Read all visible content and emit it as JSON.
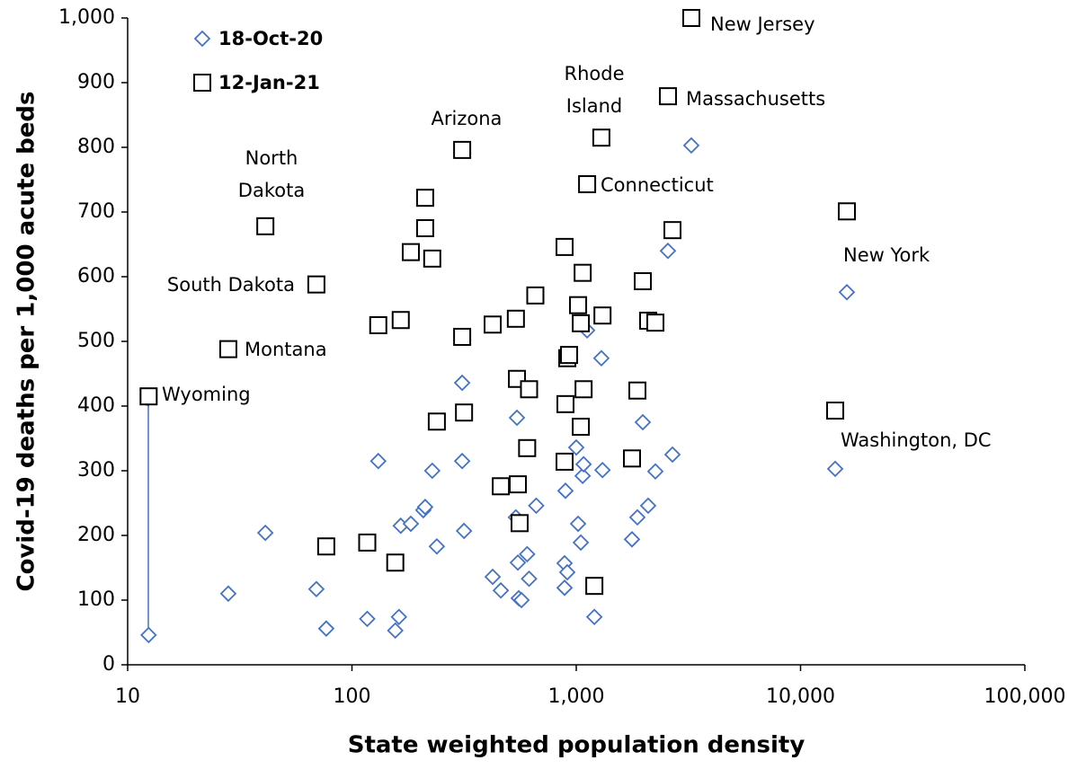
{
  "chart_data": {
    "type": "scatter",
    "xlabel": "State weighted population density",
    "ylabel": "Covid-19 deaths per 1,000 acute beds",
    "xscale": "log",
    "xlim": [
      10,
      100000
    ],
    "xticks": [
      10,
      100,
      {
        "value": 1000,
        "label": "1,000"
      },
      {
        "value": 10000,
        "label": "10,000"
      },
      {
        "value": 100000,
        "label": "100,000"
      }
    ],
    "ylim": [
      0,
      1000
    ],
    "yticks": [
      0,
      100,
      200,
      300,
      400,
      500,
      600,
      700,
      800,
      900,
      {
        "value": 1000,
        "label": "1,000"
      }
    ],
    "grid": false,
    "legend": "upper left",
    "series": [
      {
        "name": "18-Oct-20",
        "color": "#4472c4",
        "marker": "diamond",
        "x": [
          12.4,
          28.1,
          41.1,
          69.4,
          76.8,
          117,
          131,
          156,
          162,
          165,
          183,
          208,
          212,
          228,
          239,
          310,
          310,
          316,
          424,
          461,
          538,
          549,
          544,
          554,
          570,
          604,
          616,
          663,
          887,
          887,
          895,
          912,
          1000,
          1019,
          1048,
          1068,
          1078,
          1118,
          1294,
          1309,
          1204,
          1772,
          1873,
          1980,
          2092,
          2253,
          2685,
          2563,
          3258,
          14270,
          16083
        ],
        "values": [
          46,
          110,
          204,
          117,
          56,
          71,
          315,
          53,
          74,
          215,
          218,
          239,
          244,
          300,
          183,
          436,
          315,
          207,
          136,
          115,
          228,
          158,
          382,
          103,
          100,
          171,
          133,
          246,
          119,
          157,
          269,
          143,
          336,
          218,
          189,
          292,
          310,
          517,
          474,
          301,
          74,
          194,
          228,
          375,
          246,
          299,
          325,
          640,
          803,
          303,
          576
        ]
      },
      {
        "name": "12-Jan-21",
        "color": "#000000",
        "marker": "square",
        "x": [
          12.4,
          28.1,
          41.1,
          69.4,
          76.8,
          117,
          131,
          156,
          165,
          183,
          212,
          212,
          228,
          239,
          310,
          316,
          310,
          461,
          424,
          538,
          549,
          544,
          559,
          604,
          616,
          657,
          887,
          895,
          887,
          912,
          929,
          1048,
          1019,
          1068,
          1048,
          1078,
          1118,
          1294,
          1309,
          1204,
          1772,
          1873,
          1980,
          2092,
          2253,
          2685,
          2563,
          3258,
          16083,
          14270
        ],
        "values": [
          415,
          488,
          678,
          588,
          183,
          189,
          525,
          158,
          533,
          638,
          722,
          675,
          628,
          376,
          507,
          390,
          796,
          276,
          526,
          535,
          279,
          442,
          219,
          335,
          426,
          571,
          646,
          403,
          314,
          474,
          479,
          528,
          556,
          606,
          368,
          426,
          743,
          815,
          540,
          122,
          319,
          424,
          593,
          532,
          529,
          672,
          879,
          1000,
          701,
          393
        ]
      }
    ],
    "annotations": [
      [
        "New Jersey"
      ],
      [
        "Rhode",
        "Island"
      ],
      [
        "Massachusetts"
      ],
      [
        "Arizona"
      ],
      [
        "North",
        "Dakota"
      ],
      [
        "Connecticut"
      ],
      [
        "New York"
      ],
      [
        "South Dakota"
      ],
      [
        "Montana"
      ],
      [
        "Wyoming"
      ],
      [
        "Washington, DC"
      ]
    ]
  }
}
